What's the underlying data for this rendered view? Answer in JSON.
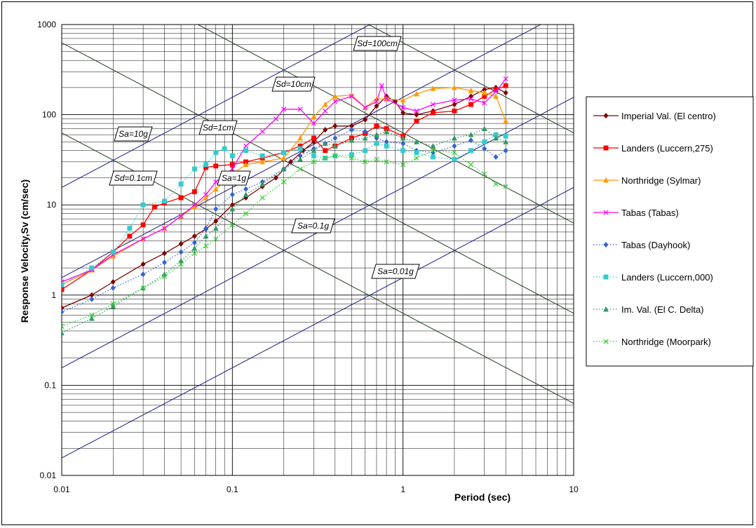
{
  "chart_data": {
    "type": "line",
    "xlabel": "Period (sec)",
    "ylabel": "Response Velocity,Sv (cm/sec)",
    "xscale": "log",
    "yscale": "log",
    "xlim": [
      0.01,
      10
    ],
    "ylim": [
      0.01,
      1000
    ],
    "x_ticks": [
      "0.01",
      "0.1",
      "1",
      "10"
    ],
    "y_ticks": [
      "0.01",
      "0.1",
      "1",
      "10",
      "100",
      "1000"
    ],
    "grid": true,
    "legend_position": "right",
    "reference_lines": {
      "Sd_cm": [
        0.1,
        1,
        10,
        100
      ],
      "Sa_g": [
        0.01,
        0.1,
        1,
        10
      ],
      "Sd_labels": [
        "Sd=0.1cm",
        "Sd=1cm",
        "Sd=10cm",
        "Sd=100cm"
      ],
      "Sa_labels": [
        "Sa=0.01g",
        "Sa=0.1g",
        "Sa=1g",
        "Sa=10g"
      ],
      "Sd_color": "#203b20",
      "Sa_color": "#1a1a80"
    },
    "series": [
      {
        "name": "Imperial Val. (El centro)",
        "color": "#800000",
        "marker": "diamond",
        "line": "solid",
        "points": [
          [
            0.01,
            0.72
          ],
          [
            0.015,
            1.0
          ],
          [
            0.02,
            1.4
          ],
          [
            0.03,
            2.2
          ],
          [
            0.04,
            2.9
          ],
          [
            0.05,
            3.7
          ],
          [
            0.06,
            4.5
          ],
          [
            0.07,
            5.4
          ],
          [
            0.08,
            6.6
          ],
          [
            0.1,
            10
          ],
          [
            0.12,
            12
          ],
          [
            0.15,
            16
          ],
          [
            0.18,
            20
          ],
          [
            0.22,
            30
          ],
          [
            0.26,
            40
          ],
          [
            0.3,
            50
          ],
          [
            0.35,
            68
          ],
          [
            0.4,
            75
          ],
          [
            0.5,
            75
          ],
          [
            0.6,
            88
          ],
          [
            0.7,
            125
          ],
          [
            0.8,
            160
          ],
          [
            0.9,
            140
          ],
          [
            1.0,
            105
          ],
          [
            1.2,
            100
          ],
          [
            1.5,
            110
          ],
          [
            2.0,
            130
          ],
          [
            2.5,
            160
          ],
          [
            3.0,
            190
          ],
          [
            3.5,
            200
          ],
          [
            4.0,
            175
          ]
        ]
      },
      {
        "name": "Landers (Luccern,275)",
        "color": "#ff0000",
        "marker": "square",
        "line": "solid",
        "points": [
          [
            0.01,
            1.15
          ],
          [
            0.015,
            1.9
          ],
          [
            0.02,
            3.0
          ],
          [
            0.025,
            4.5
          ],
          [
            0.03,
            6.0
          ],
          [
            0.035,
            9.5
          ],
          [
            0.04,
            10.5
          ],
          [
            0.05,
            12
          ],
          [
            0.06,
            14
          ],
          [
            0.07,
            26
          ],
          [
            0.08,
            27
          ],
          [
            0.1,
            28
          ],
          [
            0.12,
            30
          ],
          [
            0.15,
            33
          ],
          [
            0.2,
            38
          ],
          [
            0.25,
            45
          ],
          [
            0.3,
            55
          ],
          [
            0.35,
            40
          ],
          [
            0.4,
            45
          ],
          [
            0.5,
            55
          ],
          [
            0.6,
            62
          ],
          [
            0.7,
            75
          ],
          [
            0.8,
            70
          ],
          [
            1.0,
            58
          ],
          [
            1.2,
            85
          ],
          [
            1.5,
            105
          ],
          [
            2.0,
            110
          ],
          [
            2.5,
            130
          ],
          [
            3.0,
            160
          ],
          [
            3.5,
            190
          ],
          [
            4.0,
            210
          ]
        ]
      },
      {
        "name": "Northridge (Sylmar)",
        "color": "#ff9900",
        "marker": "triangle",
        "line": "solid",
        "points": [
          [
            0.01,
            1.3
          ],
          [
            0.015,
            1.9
          ],
          [
            0.02,
            2.7
          ],
          [
            0.03,
            4.2
          ],
          [
            0.04,
            5.5
          ],
          [
            0.05,
            7.5
          ],
          [
            0.06,
            9.5
          ],
          [
            0.07,
            12
          ],
          [
            0.08,
            15
          ],
          [
            0.1,
            22
          ],
          [
            0.12,
            28
          ],
          [
            0.15,
            30
          ],
          [
            0.2,
            33
          ],
          [
            0.25,
            55
          ],
          [
            0.3,
            95
          ],
          [
            0.35,
            130
          ],
          [
            0.4,
            160
          ],
          [
            0.5,
            165
          ],
          [
            0.6,
            120
          ],
          [
            0.7,
            150
          ],
          [
            0.8,
            150
          ],
          [
            1.0,
            145
          ],
          [
            1.2,
            170
          ],
          [
            1.5,
            195
          ],
          [
            2.0,
            200
          ],
          [
            2.5,
            185
          ],
          [
            3.0,
            175
          ],
          [
            3.5,
            160
          ],
          [
            4.0,
            85
          ]
        ]
      },
      {
        "name": "Tabas (Tabas)",
        "color": "#ff00ff",
        "marker": "x",
        "line": "solid",
        "points": [
          [
            0.01,
            1.4
          ],
          [
            0.015,
            1.9
          ],
          [
            0.02,
            2.8
          ],
          [
            0.03,
            4.2
          ],
          [
            0.04,
            5.5
          ],
          [
            0.05,
            7.5
          ],
          [
            0.06,
            10
          ],
          [
            0.07,
            13
          ],
          [
            0.08,
            18
          ],
          [
            0.1,
            25
          ],
          [
            0.12,
            45
          ],
          [
            0.15,
            65
          ],
          [
            0.18,
            90
          ],
          [
            0.2,
            115
          ],
          [
            0.25,
            115
          ],
          [
            0.3,
            80
          ],
          [
            0.35,
            110
          ],
          [
            0.4,
            140
          ],
          [
            0.5,
            160
          ],
          [
            0.6,
            120
          ],
          [
            0.7,
            140
          ],
          [
            0.75,
            210
          ],
          [
            0.8,
            150
          ],
          [
            1.0,
            120
          ],
          [
            1.2,
            110
          ],
          [
            1.5,
            130
          ],
          [
            2.0,
            145
          ],
          [
            2.5,
            150
          ],
          [
            3.0,
            135
          ],
          [
            3.5,
            180
          ],
          [
            4.0,
            250
          ]
        ]
      },
      {
        "name": "Tabas (Dayhook)",
        "color": "#3366cc",
        "marker": "diamond",
        "line": "dotted",
        "points": [
          [
            0.01,
            0.65
          ],
          [
            0.015,
            0.9
          ],
          [
            0.02,
            1.2
          ],
          [
            0.03,
            1.7
          ],
          [
            0.04,
            2.3
          ],
          [
            0.05,
            3.0
          ],
          [
            0.06,
            3.8
          ],
          [
            0.07,
            5.5
          ],
          [
            0.08,
            9
          ],
          [
            0.1,
            13
          ],
          [
            0.12,
            15
          ],
          [
            0.15,
            18
          ],
          [
            0.2,
            25
          ],
          [
            0.25,
            35
          ],
          [
            0.3,
            42
          ],
          [
            0.35,
            48
          ],
          [
            0.4,
            55
          ],
          [
            0.5,
            68
          ],
          [
            0.6,
            65
          ],
          [
            0.7,
            55
          ],
          [
            0.8,
            50
          ],
          [
            1.0,
            48
          ],
          [
            1.2,
            40
          ],
          [
            1.5,
            38
          ],
          [
            2.0,
            45
          ],
          [
            2.5,
            52
          ],
          [
            3.0,
            42
          ],
          [
            3.5,
            34
          ],
          [
            4.0,
            40
          ]
        ]
      },
      {
        "name": "Landers (Luccern,000)",
        "color": "#33cccc",
        "marker": "square",
        "line": "dotted",
        "points": [
          [
            0.01,
            1.3
          ],
          [
            0.015,
            2.0
          ],
          [
            0.02,
            3.0
          ],
          [
            0.025,
            5.5
          ],
          [
            0.03,
            10
          ],
          [
            0.04,
            11
          ],
          [
            0.05,
            17
          ],
          [
            0.06,
            25
          ],
          [
            0.07,
            28
          ],
          [
            0.08,
            38
          ],
          [
            0.09,
            42
          ],
          [
            0.1,
            35
          ],
          [
            0.12,
            40
          ],
          [
            0.15,
            35
          ],
          [
            0.2,
            38
          ],
          [
            0.25,
            42
          ],
          [
            0.3,
            35
          ],
          [
            0.35,
            33
          ],
          [
            0.4,
            35
          ],
          [
            0.5,
            36
          ],
          [
            0.6,
            40
          ],
          [
            0.7,
            48
          ],
          [
            0.8,
            45
          ],
          [
            1.0,
            40
          ],
          [
            1.2,
            38
          ],
          [
            1.5,
            34
          ],
          [
            2.0,
            32
          ],
          [
            2.5,
            40
          ],
          [
            3.0,
            50
          ],
          [
            3.5,
            60
          ],
          [
            4.0,
            58
          ]
        ]
      },
      {
        "name": "Im. Val. (El C. Delta)",
        "color": "#339966",
        "marker": "triangle",
        "line": "dotted",
        "points": [
          [
            0.01,
            0.38
          ],
          [
            0.015,
            0.55
          ],
          [
            0.02,
            0.75
          ],
          [
            0.03,
            1.2
          ],
          [
            0.04,
            1.7
          ],
          [
            0.05,
            2.4
          ],
          [
            0.06,
            3.3
          ],
          [
            0.07,
            4.5
          ],
          [
            0.08,
            5.5
          ],
          [
            0.1,
            9
          ],
          [
            0.12,
            13
          ],
          [
            0.15,
            17
          ],
          [
            0.2,
            25
          ],
          [
            0.25,
            32
          ],
          [
            0.3,
            40
          ],
          [
            0.35,
            48
          ],
          [
            0.4,
            45
          ],
          [
            0.5,
            52
          ],
          [
            0.6,
            55
          ],
          [
            0.7,
            60
          ],
          [
            0.8,
            65
          ],
          [
            1.0,
            55
          ],
          [
            1.2,
            50
          ],
          [
            1.5,
            45
          ],
          [
            2.0,
            55
          ],
          [
            2.5,
            60
          ],
          [
            3.0,
            70
          ],
          [
            3.5,
            55
          ],
          [
            4.0,
            50
          ]
        ]
      },
      {
        "name": "Northridge (Moorpark)",
        "color": "#33cc33",
        "marker": "x",
        "line": "dotted",
        "points": [
          [
            0.01,
            0.45
          ],
          [
            0.015,
            0.6
          ],
          [
            0.02,
            0.8
          ],
          [
            0.03,
            1.2
          ],
          [
            0.04,
            1.6
          ],
          [
            0.05,
            2.2
          ],
          [
            0.06,
            2.9
          ],
          [
            0.07,
            3.5
          ],
          [
            0.08,
            4.2
          ],
          [
            0.1,
            6
          ],
          [
            0.12,
            8
          ],
          [
            0.15,
            12
          ],
          [
            0.2,
            18
          ],
          [
            0.25,
            25
          ],
          [
            0.3,
            30
          ],
          [
            0.35,
            33
          ],
          [
            0.4,
            35
          ],
          [
            0.5,
            33
          ],
          [
            0.6,
            30
          ],
          [
            0.7,
            32
          ],
          [
            0.8,
            30
          ],
          [
            1.0,
            28
          ],
          [
            1.2,
            33
          ],
          [
            1.5,
            40
          ],
          [
            2.0,
            38
          ],
          [
            2.5,
            28
          ],
          [
            3.0,
            22
          ],
          [
            3.5,
            17
          ],
          [
            4.0,
            16
          ]
        ]
      }
    ]
  }
}
